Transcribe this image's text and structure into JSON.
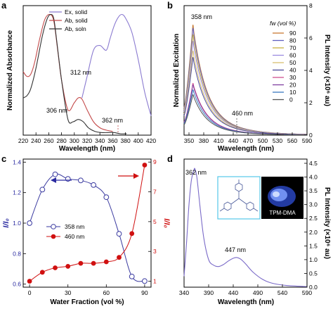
{
  "figure": {
    "panels": [
      {
        "letter": "a",
        "xlabel": "Wavelength (nm)",
        "ylabel": "Normalized Absorbance",
        "xticks": [
          "220",
          "240",
          "260",
          "280",
          "300",
          "320",
          "340",
          "360",
          "380",
          "400",
          "420"
        ],
        "legend": [
          "Ex, solid",
          "Ab, solid",
          "Ab, soln"
        ],
        "annotations": [
          "312 nm",
          "306 nm",
          "362 nm"
        ]
      },
      {
        "letter": "b",
        "xlabel": "Wavelength (nm)",
        "ylabel": "Normalized Excitation",
        "ylabel_right": "PL Intensity (×10⁶ au)",
        "xticks": [
          "350",
          "380",
          "410",
          "440",
          "470",
          "500",
          "530",
          "560",
          "590"
        ],
        "yticks_right": [
          "0",
          "2",
          "4",
          "6",
          "8"
        ],
        "legend_title": "fw (vol %)",
        "legend": [
          "90",
          "80",
          "70",
          "60",
          "50",
          "40",
          "30",
          "20",
          "10",
          "0"
        ],
        "annotations": [
          "358 nm",
          "460 nm"
        ]
      },
      {
        "letter": "c",
        "xlabel": "Water Fraction (vol %)",
        "ylabel": "I/I₀",
        "ylabel_right": "I/I₀",
        "xticks": [
          "0",
          "30",
          "60",
          "90"
        ],
        "yticks": [
          "0.6",
          "0.8",
          "1.0",
          "1.2",
          "1.4"
        ],
        "yticks_right": [
          "1",
          "3",
          "5",
          "7",
          "9"
        ],
        "legend": [
          "358 nm",
          "460 nm"
        ]
      },
      {
        "letter": "d",
        "xlabel": "Wavelength (nm)",
        "ylabel_right": "PL Intensity (×10⁶ au)",
        "xticks": [
          "340",
          "390",
          "440",
          "490",
          "540",
          "590"
        ],
        "yticks_right": [
          "0.0",
          "0.5",
          "1.0",
          "1.5",
          "2.0",
          "2.5",
          "3.0",
          "3.5",
          "4.0",
          "4.5"
        ],
        "annotations": [
          "362 nm",
          "447 nm"
        ],
        "inset_label": "TPM-DMA"
      }
    ]
  },
  "chart_data": [
    {
      "type": "line",
      "panel": "a",
      "xlabel": "Wavelength (nm)",
      "ylabel": "Normalized Absorbance",
      "xlim": [
        220,
        420
      ],
      "ylim": [
        0,
        1
      ],
      "y_ticks_shown": false,
      "legend_position": "top-left",
      "series": [
        {
          "name": "Ex, solid",
          "color": "#8a7ad0",
          "x": [
            312,
            320,
            330,
            340,
            350,
            356,
            362,
            368,
            374,
            380,
            390,
            400,
            410,
            420
          ],
          "y": [
            0.3,
            0.48,
            0.7,
            0.74,
            0.7,
            0.8,
            0.9,
            0.97,
            1.0,
            0.97,
            0.85,
            0.62,
            0.35,
            0.15
          ]
        },
        {
          "name": "Ab, solid",
          "color": "#c44a4a",
          "x": [
            220,
            226,
            232,
            238,
            246,
            254,
            262,
            268,
            274,
            280,
            290,
            300,
            306,
            312,
            320,
            330,
            340,
            350,
            360
          ],
          "y": [
            0.52,
            0.48,
            0.5,
            0.6,
            0.8,
            0.96,
            1.0,
            0.94,
            0.7,
            0.45,
            0.2,
            0.26,
            0.3,
            0.29,
            0.2,
            0.1,
            0.05,
            0.03,
            0.02
          ]
        },
        {
          "name": "Ab, soln",
          "color": "#333333",
          "x": [
            220,
            226,
            232,
            240,
            250,
            258,
            264,
            268,
            272,
            280,
            290,
            298,
            306,
            314,
            322,
            332,
            342,
            352,
            362,
            372,
            382
          ],
          "y": [
            0.3,
            0.32,
            0.38,
            0.55,
            0.82,
            0.97,
            1.0,
            0.96,
            0.8,
            0.45,
            0.12,
            0.1,
            0.12,
            0.1,
            0.05,
            0.02,
            0.01,
            0.01,
            0.01,
            0.0,
            0.0
          ]
        }
      ],
      "annotations": [
        {
          "text": "312 nm",
          "x": 312,
          "y": 0.29
        },
        {
          "text": "306 nm",
          "x": 306,
          "y": 0.12
        },
        {
          "text": "362 nm",
          "x": 362,
          "y": 0.02
        }
      ]
    },
    {
      "type": "line",
      "panel": "b",
      "xlabel": "Wavelength (nm)",
      "ylabel": "Normalized Excitation",
      "ylabel_right": "PL Intensity (×10⁶ au)",
      "xlim": [
        340,
        590
      ],
      "ylim": [
        0,
        8
      ],
      "legend_title": "fw (vol %)",
      "legend_position": "right",
      "peak_x": 358,
      "series": [
        {
          "name": "90",
          "color": "#c87a32",
          "peak": 6.8
        },
        {
          "name": "80",
          "color": "#6060c0",
          "peak": 6.6
        },
        {
          "name": "70",
          "color": "#c8b040",
          "peak": 6.2
        },
        {
          "name": "60",
          "color": "#9a8ae0",
          "peak": 5.8
        },
        {
          "name": "50",
          "color": "#d8c070",
          "peak": 5.2
        },
        {
          "name": "40",
          "color": "#4a4a9a",
          "peak": 4.8
        },
        {
          "name": "30",
          "color": "#d05090",
          "peak": 3.2
        },
        {
          "name": "20",
          "color": "#8040a0",
          "peak": 3.1
        },
        {
          "name": "10",
          "color": "#3a7ac0",
          "peak": 2.8
        },
        {
          "name": "0",
          "color": "#555555",
          "peak": 2.5
        }
      ],
      "annotations": [
        {
          "text": "358 nm",
          "x": 358
        },
        {
          "text": "460 nm",
          "x": 460
        }
      ]
    },
    {
      "type": "scatter",
      "panel": "c",
      "xlabel": "Water Fraction (vol %)",
      "ylabel": "I/I₀",
      "ylabel_right": "I/I₀",
      "xlim": [
        -5,
        95
      ],
      "ylim": [
        0.58,
        1.42
      ],
      "ylim_right": [
        0.6,
        9.2
      ],
      "legend_position": "center",
      "series": [
        {
          "name": "358 nm",
          "axis": "left",
          "color": "#3a3aa0",
          "marker": "open-circle",
          "x": [
            0,
            10,
            20,
            30,
            40,
            50,
            60,
            70,
            80,
            90
          ],
          "y": [
            1.0,
            1.22,
            1.32,
            1.29,
            1.28,
            1.25,
            1.17,
            0.93,
            0.65,
            0.62
          ]
        },
        {
          "name": "460 nm",
          "axis": "right",
          "color": "#d01010",
          "marker": "filled-circle",
          "x": [
            0,
            10,
            20,
            30,
            40,
            50,
            60,
            70,
            80,
            90
          ],
          "y": [
            1.0,
            1.6,
            1.9,
            2.0,
            2.2,
            2.2,
            2.3,
            2.6,
            4.2,
            8.8
          ]
        }
      ]
    },
    {
      "type": "line",
      "panel": "d",
      "xlabel": "Wavelength (nm)",
      "ylabel_right": "PL Intensity (×10⁶ au)",
      "xlim": [
        340,
        590
      ],
      "ylim": [
        0,
        4.5
      ],
      "series": [
        {
          "name": "",
          "color": "#7a6ac8",
          "x": [
            340,
            345,
            350,
            355,
            360,
            362,
            366,
            372,
            380,
            390,
            400,
            410,
            420,
            430,
            440,
            447,
            455,
            465,
            480,
            500,
            520,
            550,
            590
          ],
          "y": [
            0.4,
            1.6,
            3.0,
            3.9,
            4.25,
            4.3,
            4.0,
            3.0,
            1.8,
            1.0,
            0.8,
            0.75,
            0.82,
            0.95,
            1.05,
            1.08,
            1.02,
            0.85,
            0.55,
            0.28,
            0.14,
            0.06,
            0.02
          ]
        }
      ],
      "annotations": [
        {
          "text": "362 nm",
          "x": 362,
          "y": 4.3
        },
        {
          "text": "447 nm",
          "x": 447,
          "y": 1.08
        }
      ]
    }
  ]
}
